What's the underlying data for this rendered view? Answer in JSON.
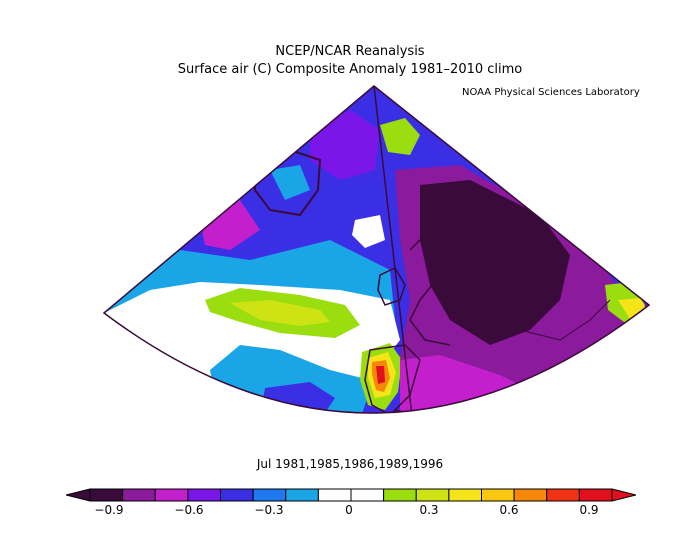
{
  "figure": {
    "title_line1": "NCEP/NCAR Reanalysis",
    "title_line2": "Surface air (C) Composite Anomaly 1981–2010 climo",
    "credit": "NOAA Physical Sciences Laboratory",
    "caption": "Jul 1981,1985,1986,1989,1996"
  },
  "colorbar": {
    "tick_labels": [
      "−0.9",
      "−0.6",
      "−0.3",
      "0",
      "0.3",
      "0.6",
      "0.9"
    ],
    "colors": [
      "#3a0a3a",
      "#8b1a9c",
      "#c41fcc",
      "#7b16e8",
      "#3b2fe6",
      "#1e78f0",
      "#1aa6e6",
      "#ffffff",
      "#ffffff",
      "#9bde10",
      "#cde313",
      "#f4e418",
      "#fbc810",
      "#f6870a",
      "#f23214",
      "#e0101e"
    ],
    "marker_color": "#7b16e8"
  },
  "map": {
    "outline_color": "#3a0a3a",
    "coast_color": "#3a0a3a"
  }
}
